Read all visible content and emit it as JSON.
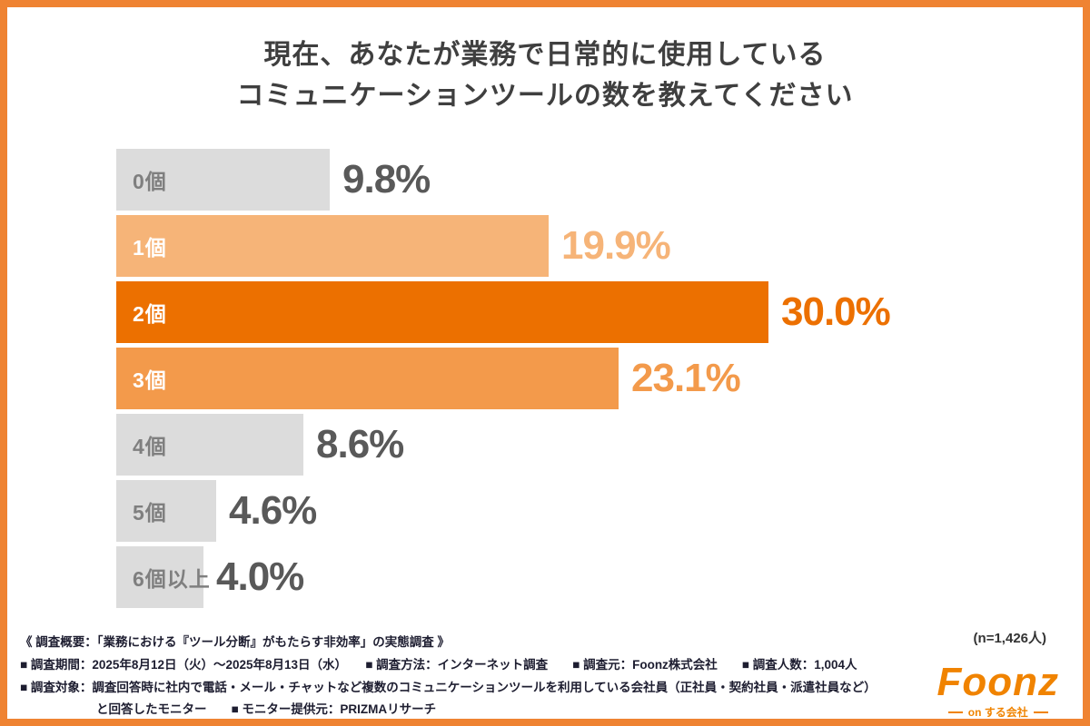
{
  "colors": {
    "frame_border": "#ef8332",
    "bar_gray": "#dcdcdc",
    "bar_light_orange": "#f6b478",
    "bar_dark_orange": "#ec7000",
    "bar_mid_orange": "#f39a4b",
    "title_text": "#3f3f3f",
    "footer_text": "#1d1d30",
    "logo_orange": "#f08300"
  },
  "title": {
    "line1": "現在、あなたが業務で日常的に使用している",
    "line2": "コミュニケーションツールの数を教えてください"
  },
  "chart_data": {
    "type": "bar",
    "orientation": "horizontal",
    "title": "現在、あなたが業務で日常的に使用しているコミュニケーションツールの数を教えてください",
    "categories": [
      "0個",
      "1個",
      "2個",
      "3個",
      "4個",
      "5個",
      "6個以上"
    ],
    "values": [
      9.8,
      19.9,
      30.0,
      23.1,
      8.6,
      4.6,
      4.0
    ],
    "value_labels": [
      "9.8%",
      "19.9%",
      "30.0%",
      "23.1%",
      "8.6%",
      "4.6%",
      "4.0%"
    ],
    "bar_colors": [
      "#dcdcdc",
      "#f6b478",
      "#ec7000",
      "#f39a4b",
      "#dcdcdc",
      "#dcdcdc",
      "#dcdcdc"
    ],
    "category_label_colors": [
      "#7f7f7f",
      "#ffffff",
      "#ffffff",
      "#ffffff",
      "#7f7f7f",
      "#7f7f7f",
      "#7f7f7f"
    ],
    "value_label_colors": [
      "#595959",
      "#f6b478",
      "#ec7000",
      "#f39a4b",
      "#595959",
      "#595959",
      "#595959"
    ],
    "xlim": [
      0,
      33
    ],
    "grid": false,
    "legend": false,
    "sample_size": "(n=1,426人)"
  },
  "sample_size_label": "(n=1,426人)",
  "footer": {
    "line1": "《 調査概要：「業務における『ツール分断』がもたらす非効率」の実態調査 》",
    "line2": "■ 調査期間：2025年8月12日（火）〜2025年8月13日（水）　　■ 調査方法：インターネット調査　　■ 調査元：Foonz株式会社　　■ 調査人数：1,004人",
    "line3": "■ 調査対象：調査回答時に社内で電話・メール・チャットなど複数のコミュニケーションツールを利用している会社員（正社員・契約社員・派遣社員など）",
    "line4": "と回答したモニター　　■ モニター提供元：PRIZMAリサーチ"
  },
  "logo": {
    "name": "Foonz",
    "tagline": "on する会社"
  }
}
